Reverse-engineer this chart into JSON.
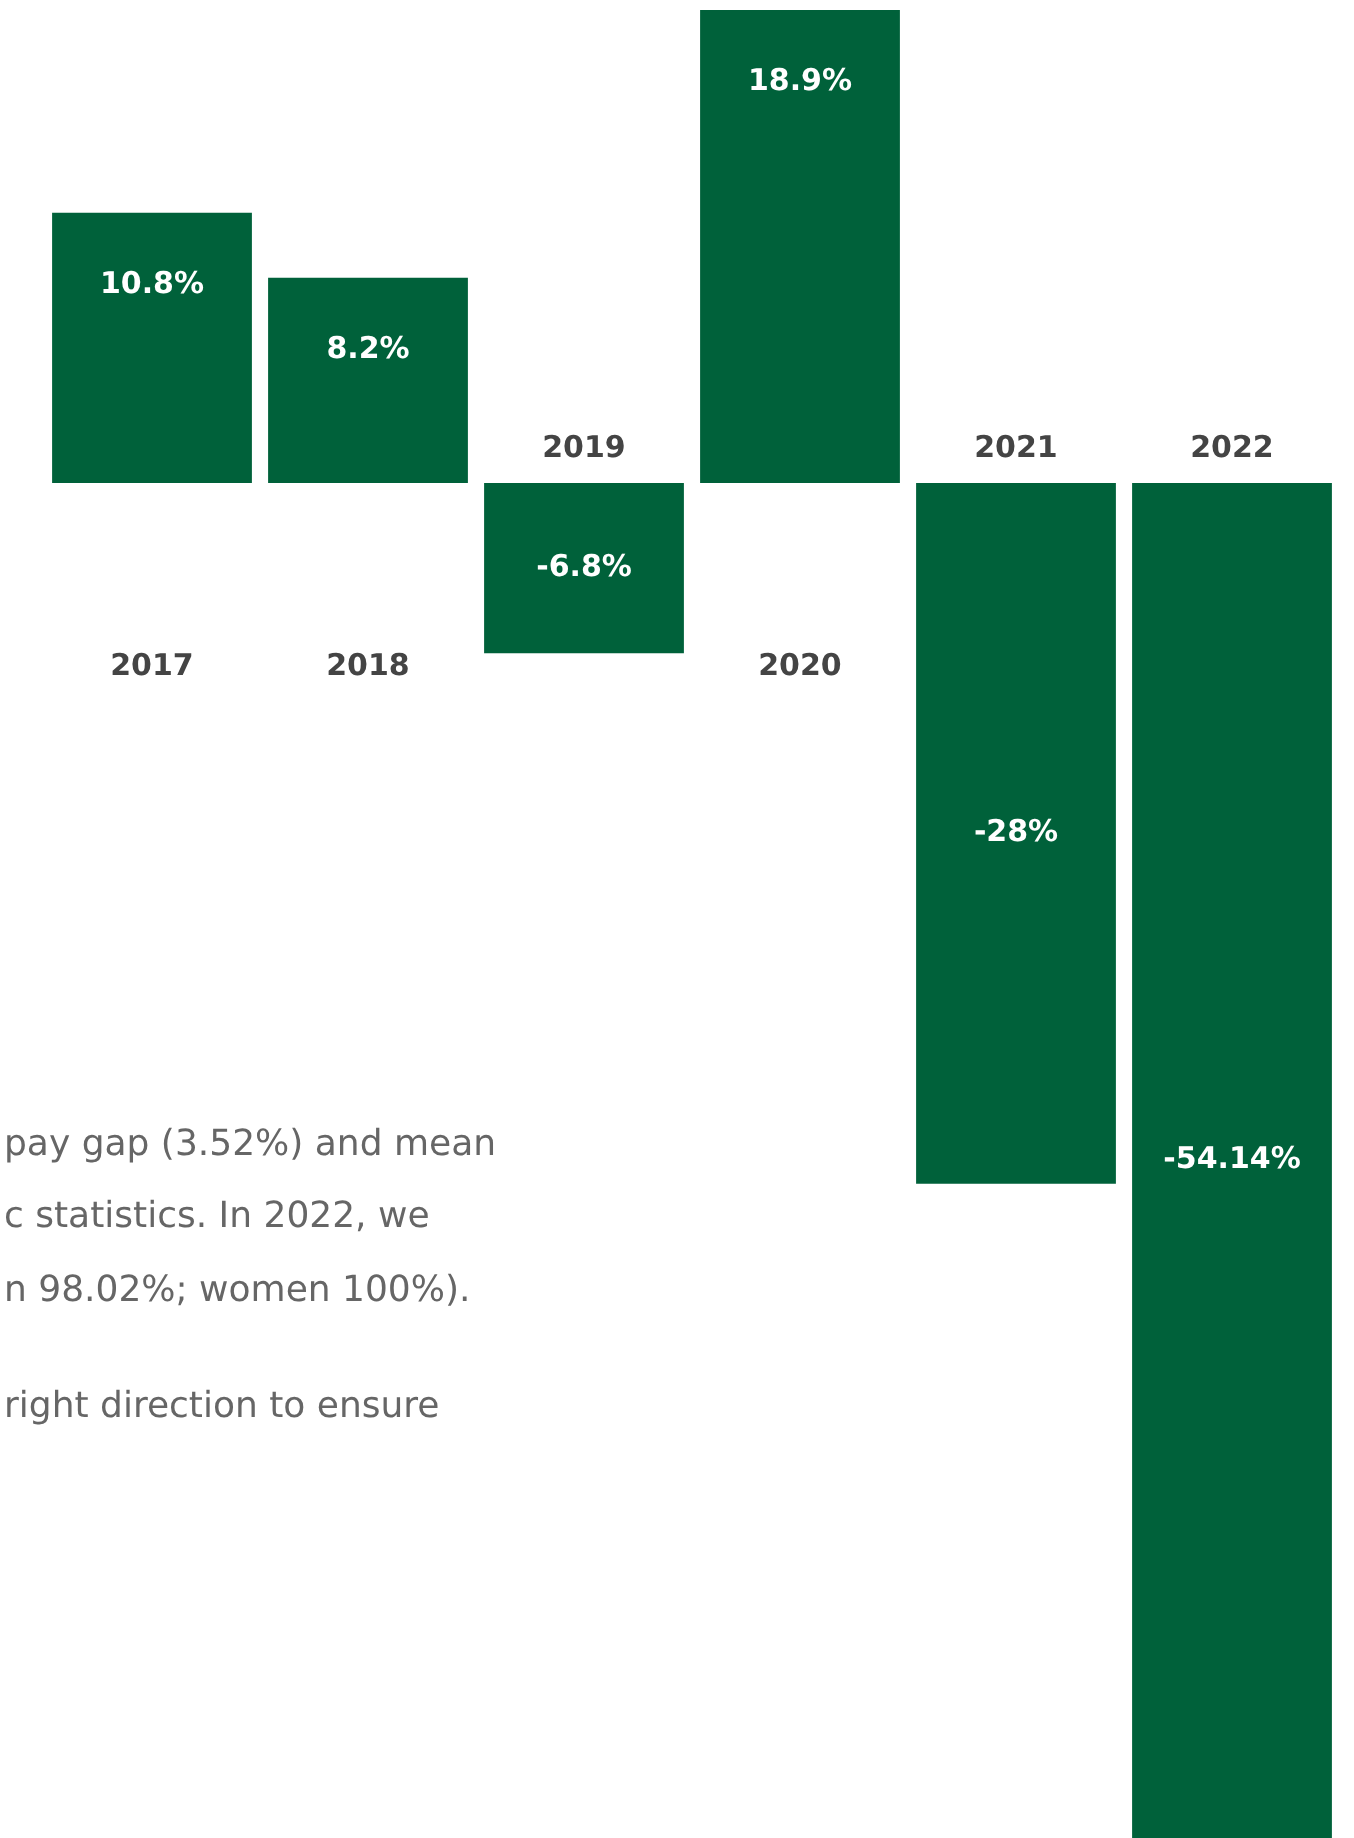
{
  "chart_data": {
    "type": "bar",
    "categories": [
      "2017",
      "2018",
      "2019",
      "2020",
      "2021",
      "2022"
    ],
    "values": [
      10.8,
      8.2,
      -6.8,
      18.9,
      -28,
      -54.14
    ],
    "value_labels": [
      "10.8%",
      "8.2%",
      "-6.8%",
      "18.9%",
      "-28%",
      "-54.14%"
    ],
    "color": "#00613a",
    "annotations": [
      "pay gap (3.52%) and mean",
      "c statistics. In 2022, we",
      "n 98.02%; women 100%).",
      "right direction to ensure"
    ]
  }
}
